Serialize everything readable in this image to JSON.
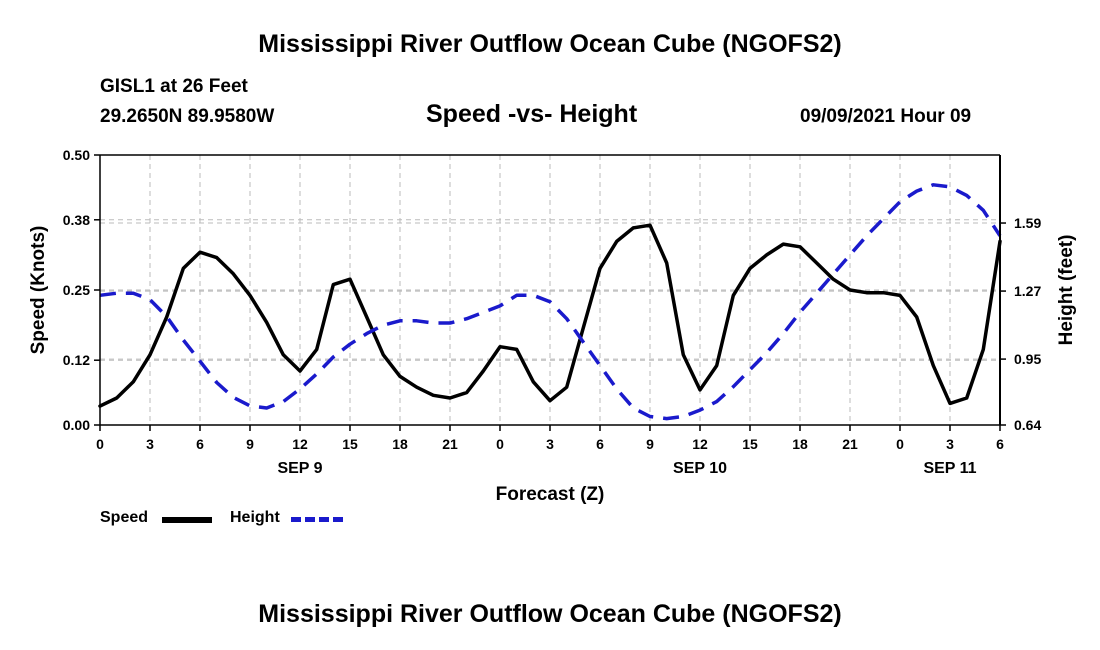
{
  "header": {
    "title_top": "Mississippi River Outflow Ocean Cube (NGOFS2)",
    "station": "GISL1 at 26 Feet",
    "coords": "29.2650N  89.9580W",
    "subtitle": "Speed -vs- Height",
    "datetime": "09/09/2021 Hour 09",
    "title_bottom": "Mississippi River Outflow Ocean Cube (NGOFS2)"
  },
  "legend": {
    "speed_label": "Speed",
    "height_label": "Height"
  },
  "colors": {
    "speed": "#000000",
    "height": "#1a1acc",
    "grid": "#bbbbbb"
  },
  "chart_data": {
    "type": "line",
    "title": "Speed -vs- Height",
    "xlabel": "Forecast (Z)",
    "ylabel": "Speed (Knots)",
    "y2label": "Height (feet)",
    "x_range": [
      0,
      54
    ],
    "ylim": [
      0,
      0.5
    ],
    "y2lim": [
      0.64,
      1.91
    ],
    "x_ticks": [
      0,
      3,
      6,
      9,
      12,
      15,
      18,
      21,
      24,
      27,
      30,
      33,
      36,
      39,
      42,
      45,
      48,
      51,
      54
    ],
    "x_tick_labels": [
      "0",
      "3",
      "6",
      "9",
      "12",
      "15",
      "18",
      "21",
      "0",
      "3",
      "6",
      "9",
      "12",
      "15",
      "18",
      "21",
      "0",
      "3",
      "6"
    ],
    "day_labels": [
      {
        "x": 12,
        "label": "SEP 9"
      },
      {
        "x": 36,
        "label": "SEP 10"
      },
      {
        "x": 51,
        "label": "SEP 11"
      }
    ],
    "y_ticks": [
      0.0,
      0.12,
      0.25,
      0.38,
      0.5
    ],
    "y_tick_labels": [
      "0.00",
      "0.12",
      "0.25",
      "0.38",
      "0.50"
    ],
    "y2_ticks": [
      0.64,
      0.95,
      1.27,
      1.59
    ],
    "y2_tick_labels": [
      "0.64",
      "0.95",
      "1.27",
      "1.59"
    ],
    "grid": true,
    "series": [
      {
        "name": "Speed",
        "axis": "left",
        "style": "solid",
        "x": [
          0,
          1,
          2,
          3,
          4,
          5,
          6,
          7,
          8,
          9,
          10,
          11,
          12,
          13,
          14,
          15,
          16,
          17,
          18,
          19,
          20,
          21,
          22,
          23,
          24,
          25,
          26,
          27,
          28,
          29,
          30,
          31,
          32,
          33,
          34,
          35,
          36,
          37,
          38,
          39,
          40,
          41,
          42,
          43,
          44,
          45,
          46,
          47,
          48,
          49,
          50,
          51,
          52,
          53,
          54
        ],
        "values": [
          0.035,
          0.05,
          0.08,
          0.13,
          0.2,
          0.29,
          0.32,
          0.31,
          0.28,
          0.24,
          0.19,
          0.13,
          0.1,
          0.14,
          0.26,
          0.27,
          0.2,
          0.13,
          0.09,
          0.07,
          0.055,
          0.05,
          0.06,
          0.1,
          0.145,
          0.14,
          0.08,
          0.045,
          0.07,
          0.18,
          0.29,
          0.34,
          0.365,
          0.37,
          0.3,
          0.13,
          0.065,
          0.11,
          0.24,
          0.29,
          0.315,
          0.335,
          0.33,
          0.3,
          0.27,
          0.25,
          0.245,
          0.245,
          0.24,
          0.2,
          0.11,
          0.04,
          0.05,
          0.14,
          0.34
        ]
      },
      {
        "name": "Height",
        "axis": "right",
        "style": "dashed",
        "x": [
          0,
          1,
          2,
          3,
          4,
          5,
          6,
          7,
          8,
          9,
          10,
          11,
          12,
          13,
          14,
          15,
          16,
          17,
          18,
          19,
          20,
          21,
          22,
          23,
          24,
          25,
          26,
          27,
          28,
          29,
          30,
          31,
          32,
          33,
          34,
          35,
          36,
          37,
          38,
          39,
          40,
          41,
          42,
          43,
          44,
          45,
          46,
          47,
          48,
          49,
          50,
          51,
          52,
          53,
          54
        ],
        "values": [
          1.25,
          1.26,
          1.26,
          1.23,
          1.15,
          1.04,
          0.94,
          0.84,
          0.77,
          0.73,
          0.72,
          0.75,
          0.81,
          0.88,
          0.96,
          1.02,
          1.07,
          1.11,
          1.13,
          1.13,
          1.12,
          1.12,
          1.14,
          1.17,
          1.2,
          1.25,
          1.25,
          1.22,
          1.14,
          1.03,
          0.92,
          0.81,
          0.72,
          0.68,
          0.67,
          0.68,
          0.71,
          0.75,
          0.82,
          0.9,
          0.98,
          1.07,
          1.17,
          1.26,
          1.35,
          1.44,
          1.53,
          1.61,
          1.69,
          1.74,
          1.77,
          1.76,
          1.72,
          1.65,
          1.53
        ]
      }
    ]
  }
}
